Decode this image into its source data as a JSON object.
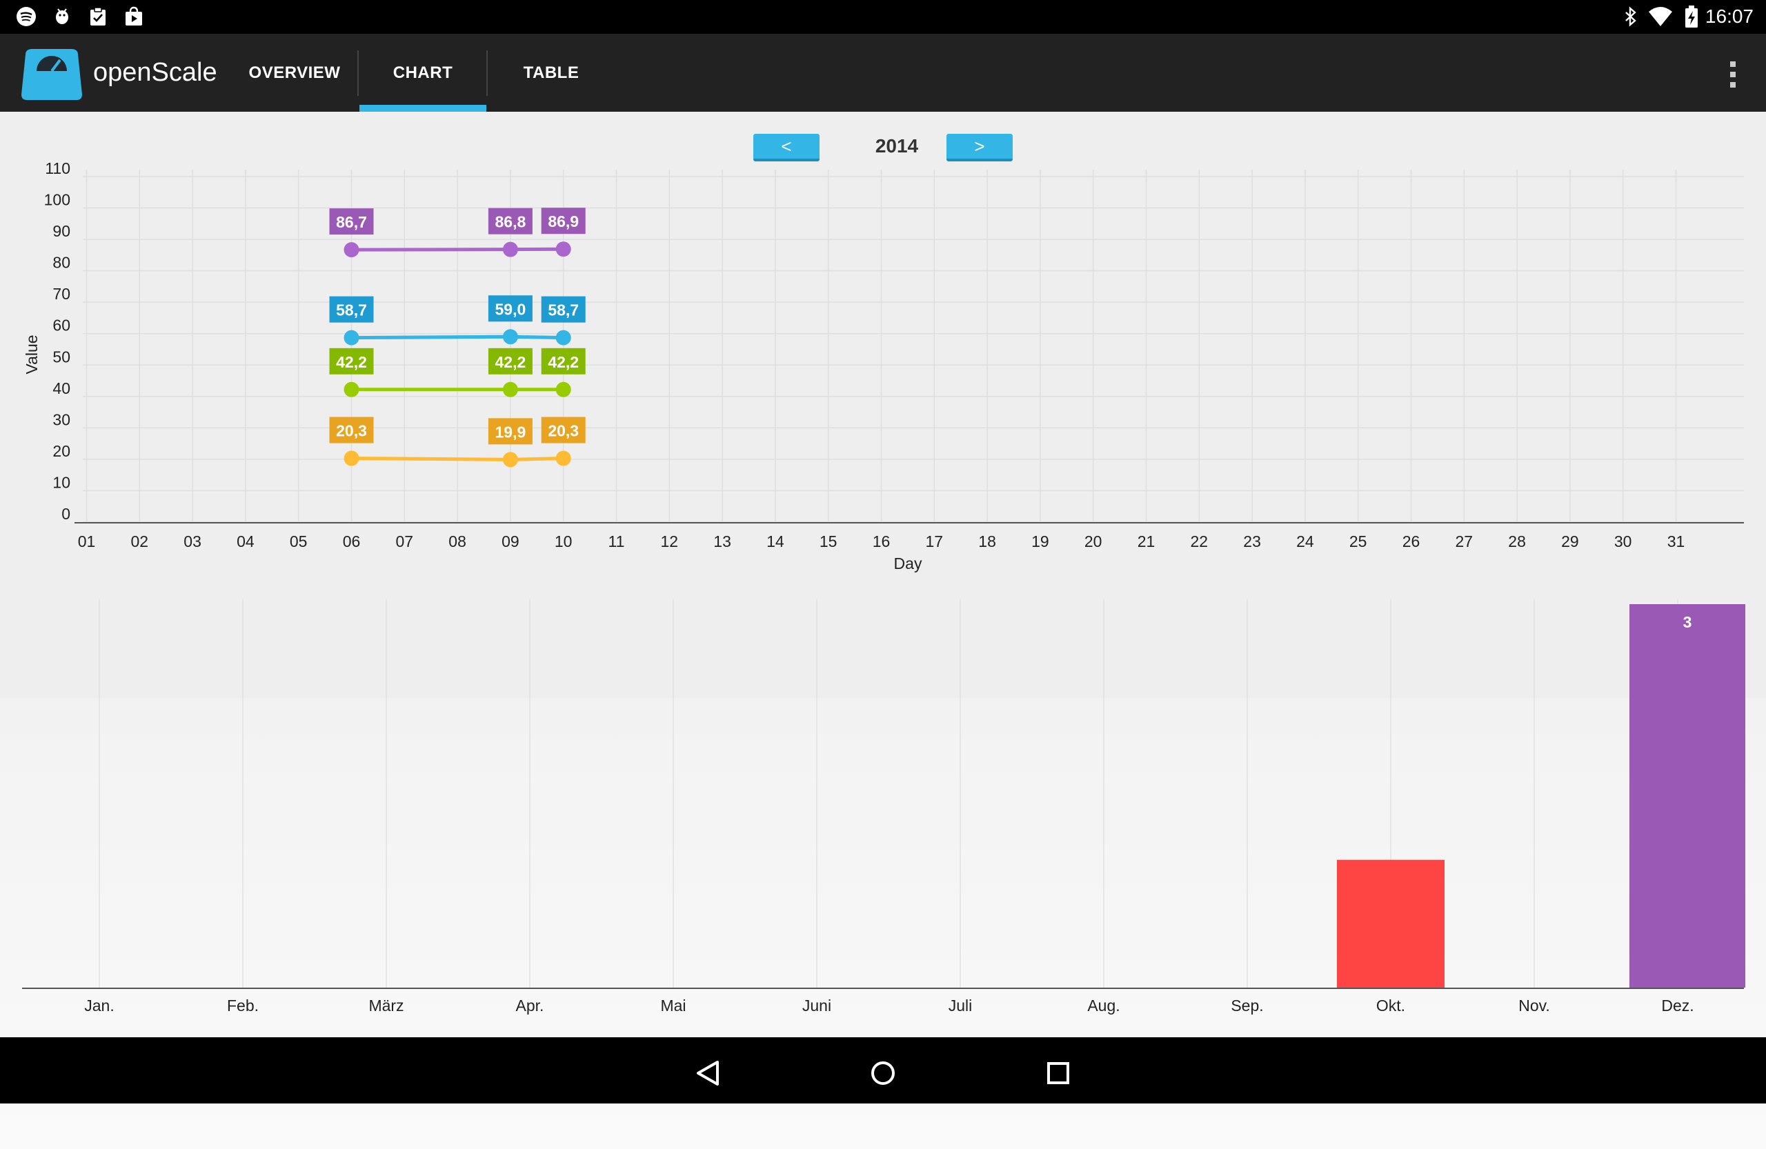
{
  "status_bar": {
    "time": "16:07",
    "left_icons": [
      "spotify-icon",
      "android-debug-icon",
      "clipboard-check-icon",
      "play-store-icon"
    ],
    "right_icons": [
      "bluetooth-icon",
      "wifi-icon",
      "battery-charging-icon"
    ]
  },
  "app": {
    "title": "openScale"
  },
  "tabs": [
    {
      "label": "OVERVIEW",
      "selected": false
    },
    {
      "label": "CHART",
      "selected": true
    },
    {
      "label": "TABLE",
      "selected": false
    }
  ],
  "year_nav": {
    "prev_label": "<",
    "year": "2014",
    "next_label": ">"
  },
  "colors": {
    "accent": "#33b5e5",
    "weight": "#aa66cc",
    "water": "#33b5e5",
    "muscle": "#99cc00",
    "fat": "#ffbb33",
    "bar_oct": "#ff4444",
    "bar_dec": "#9b59b6"
  },
  "chart_data": [
    {
      "type": "line",
      "xlabel": "Day",
      "ylabel": "Value",
      "ylim": [
        0,
        110
      ],
      "yticks": [
        "0",
        "10",
        "20",
        "30",
        "40",
        "50",
        "60",
        "70",
        "80",
        "90",
        "100",
        "110"
      ],
      "x_ticks": [
        "01",
        "02",
        "03",
        "04",
        "05",
        "06",
        "07",
        "08",
        "09",
        "10",
        "11",
        "12",
        "13",
        "14",
        "15",
        "16",
        "17",
        "18",
        "19",
        "20",
        "21",
        "22",
        "23",
        "24",
        "25",
        "26",
        "27",
        "28",
        "29",
        "30",
        "31"
      ],
      "x": [
        6,
        9,
        10
      ],
      "series": [
        {
          "key": "weight",
          "color": "#aa66cc",
          "label_color": "#9b59b6",
          "values": [
            86.7,
            86.8,
            86.9
          ],
          "labels": [
            "86,7",
            "86,8",
            "86,9"
          ]
        },
        {
          "key": "water",
          "color": "#33b5e5",
          "label_color": "#1e9bd0",
          "values": [
            58.7,
            59.0,
            58.7
          ],
          "labels": [
            "58,7",
            "59,0",
            "58,7"
          ]
        },
        {
          "key": "muscle",
          "color": "#99cc00",
          "label_color": "#85b800",
          "values": [
            42.2,
            42.2,
            42.2
          ],
          "labels": [
            "42,2",
            "42,2",
            "42,2"
          ]
        },
        {
          "key": "fat",
          "color": "#ffbb33",
          "label_color": "#e8a320",
          "values": [
            20.3,
            19.9,
            20.3
          ],
          "labels": [
            "20,3",
            "19,9",
            "20,3"
          ]
        }
      ],
      "grid": true
    },
    {
      "type": "bar",
      "categories": [
        "Jan.",
        "Feb.",
        "März",
        "Apr.",
        "Mai",
        "Juni",
        "Juli",
        "Aug.",
        "Sep.",
        "Okt.",
        "Nov.",
        "Dez."
      ],
      "values": [
        0,
        0,
        0,
        0,
        0,
        0,
        0,
        0,
        0,
        1,
        0,
        3
      ],
      "colors": [
        "",
        "",
        "",
        "",
        "",
        "",
        "",
        "",
        "",
        "#ff4444",
        "",
        "#9b59b6"
      ],
      "value_labels": [
        "",
        "",
        "",
        "",
        "",
        "",
        "",
        "",
        "",
        "",
        "",
        "3"
      ],
      "ylim": [
        0,
        3
      ],
      "grid": true
    }
  ]
}
